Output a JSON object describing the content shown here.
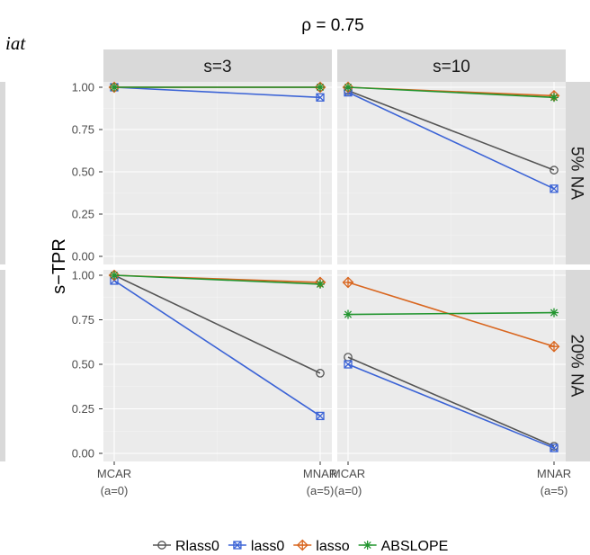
{
  "colors": {
    "panel_bg": "#ebebeb",
    "strip_bg": "#d9d9d9",
    "grid_major": "#ffffff",
    "grid_minor": "#f4f4f4",
    "Rlass0": "#555555",
    "lass0": "#3b63d6",
    "lasso": "#d9661f",
    "ABSLOPE": "#22952f"
  },
  "icons": {
    "Rlass0": "circle-open-marker",
    "lass0": "square-crossed-marker",
    "lasso": "diamond-plus-marker",
    "ABSLOPE": "asterisk-marker"
  },
  "chart_data": {
    "type": "line",
    "title": "ρ = 0.75",
    "clipped_left_text": "iat",
    "ylabel": "s−TPR",
    "ylim": [
      0,
      1
    ],
    "y_ticks": [
      "0.00",
      "0.25",
      "0.50",
      "0.75",
      "1.00"
    ],
    "x_categories": [
      {
        "line1": "MCAR",
        "line2": "(a=0)"
      },
      {
        "line1": "MNAR",
        "line2": "(a=5)"
      }
    ],
    "facet_columns": [
      "s=3",
      "s=10"
    ],
    "facet_rows": [
      "5% NA",
      "20% NA"
    ],
    "legend": {
      "position": "bottom",
      "entries": [
        "Rlass0",
        "lass0",
        "lasso",
        "ABSLOPE"
      ]
    },
    "panels": [
      {
        "row": "5% NA",
        "col": "s=3",
        "series": [
          {
            "name": "Rlass0",
            "values": [
              1.0,
              1.0
            ]
          },
          {
            "name": "lass0",
            "values": [
              1.0,
              0.94
            ]
          },
          {
            "name": "lasso",
            "values": [
              1.0,
              1.0
            ]
          },
          {
            "name": "ABSLOPE",
            "values": [
              1.0,
              1.0
            ]
          }
        ]
      },
      {
        "row": "5% NA",
        "col": "s=10",
        "series": [
          {
            "name": "Rlass0",
            "values": [
              0.98,
              0.51
            ]
          },
          {
            "name": "lass0",
            "values": [
              0.97,
              0.4
            ]
          },
          {
            "name": "lasso",
            "values": [
              1.0,
              0.95
            ]
          },
          {
            "name": "ABSLOPE",
            "values": [
              1.0,
              0.94
            ]
          }
        ]
      },
      {
        "row": "20% NA",
        "col": "s=3",
        "series": [
          {
            "name": "Rlass0",
            "values": [
              1.0,
              0.45
            ]
          },
          {
            "name": "lass0",
            "values": [
              0.97,
              0.21
            ]
          },
          {
            "name": "lasso",
            "values": [
              1.0,
              0.96
            ]
          },
          {
            "name": "ABSLOPE",
            "values": [
              1.0,
              0.95
            ]
          }
        ]
      },
      {
        "row": "20% NA",
        "col": "s=10",
        "series": [
          {
            "name": "Rlass0",
            "values": [
              0.54,
              0.04
            ]
          },
          {
            "name": "lass0",
            "values": [
              0.5,
              0.03
            ]
          },
          {
            "name": "lasso",
            "values": [
              0.96,
              0.6
            ]
          },
          {
            "name": "ABSLOPE",
            "values": [
              0.78,
              0.79
            ]
          }
        ]
      }
    ]
  }
}
